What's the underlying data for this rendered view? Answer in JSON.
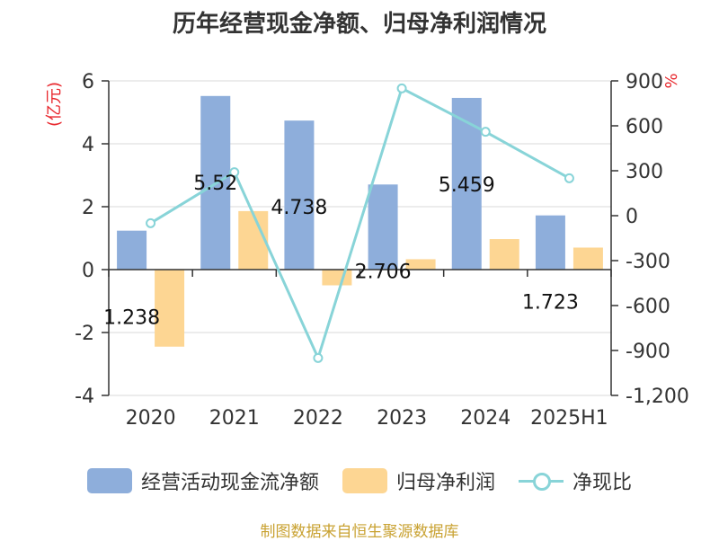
{
  "chart_data": {
    "type": "bar",
    "title": "历年经营现金净额、归母净利润情况",
    "categories": [
      "2020",
      "2021",
      "2022",
      "2023",
      "2024",
      "2025H1"
    ],
    "y_left": {
      "label": "(亿元)",
      "range": [
        -4,
        6
      ],
      "ticks": [
        "-4",
        "-2",
        "0",
        "2",
        "4",
        "6"
      ]
    },
    "y_right": {
      "label": "%",
      "range": [
        -1200,
        900
      ],
      "ticks": [
        "-1,200",
        "-900",
        "-600",
        "-300",
        "0",
        "300",
        "600",
        "900"
      ]
    },
    "series": [
      {
        "name": "经营活动现金流净额",
        "type": "bar",
        "axis": "left",
        "color": "#8eaedb",
        "values": [
          1.238,
          5.52,
          4.738,
          2.706,
          5.459,
          1.723
        ],
        "labels": [
          "1.238",
          "5.52",
          "4.738",
          "2.706",
          "5.459",
          "1.723"
        ]
      },
      {
        "name": "归母净利润",
        "type": "bar",
        "axis": "left",
        "color": "#fdd693",
        "values": [
          -2.45,
          1.86,
          -0.5,
          0.33,
          0.97,
          0.7
        ]
      },
      {
        "name": "净现比",
        "type": "line",
        "axis": "right",
        "color": "#88d4d8",
        "values": [
          -50,
          290,
          -950,
          850,
          560,
          250
        ]
      }
    ],
    "grid": true,
    "legend": "bottom"
  },
  "source_text": "制图数据来自恒生聚源数据库"
}
